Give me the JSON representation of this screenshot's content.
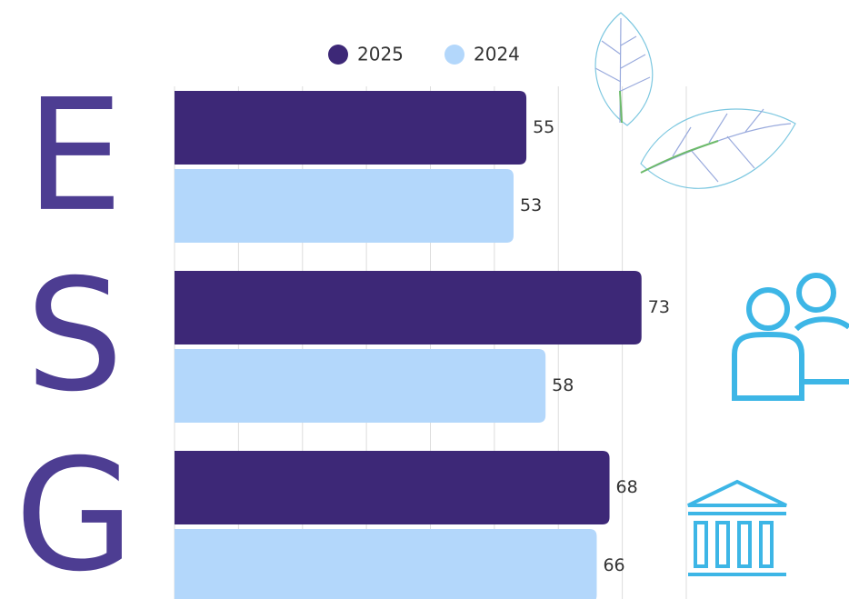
{
  "chart_data": {
    "type": "bar",
    "orientation": "horizontal",
    "categories": [
      "E",
      "S",
      "G"
    ],
    "series": [
      {
        "name": "2025",
        "color": "#3d2877",
        "values": [
          55,
          73,
          68
        ]
      },
      {
        "name": "2024",
        "color": "#b3d7fb",
        "values": [
          53,
          58,
          66
        ]
      }
    ],
    "xlim": [
      0,
      80
    ],
    "xticks": [
      0,
      10,
      20,
      30,
      40,
      50,
      60,
      70,
      80
    ],
    "grid": true,
    "legend": "top"
  }
}
